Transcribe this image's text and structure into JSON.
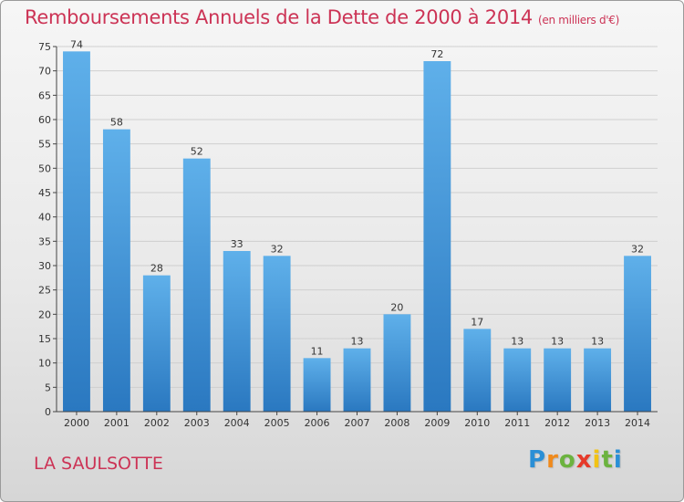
{
  "chart_data": {
    "type": "bar",
    "title": "Remboursements Annuels de la Dette de 2000 à 2014",
    "unit_label": "(en milliers d'€)",
    "categories": [
      "2000",
      "2001",
      "2002",
      "2003",
      "2004",
      "2005",
      "2006",
      "2007",
      "2008",
      "2009",
      "2010",
      "2011",
      "2012",
      "2013",
      "2014"
    ],
    "values": [
      74,
      58,
      28,
      52,
      33,
      32,
      11,
      13,
      20,
      72,
      17,
      13,
      13,
      13,
      32
    ],
    "xlabel": "",
    "ylabel": "",
    "ylim": [
      0,
      75
    ],
    "yticks": [
      0,
      5,
      10,
      15,
      20,
      25,
      30,
      35,
      40,
      45,
      50,
      55,
      60,
      65,
      70,
      75
    ],
    "grid": true,
    "bar_color_top": "#5fb0ea",
    "bar_color_bottom": "#2a78c0"
  },
  "footer": {
    "commune": "LA SAULSOTTE",
    "logo_letters": [
      "P",
      "r",
      "o",
      "x",
      "i",
      "t",
      "i"
    ]
  },
  "colors": {
    "title": "#cc3355",
    "grid": "#cfcfcf",
    "axis": "#444444"
  }
}
